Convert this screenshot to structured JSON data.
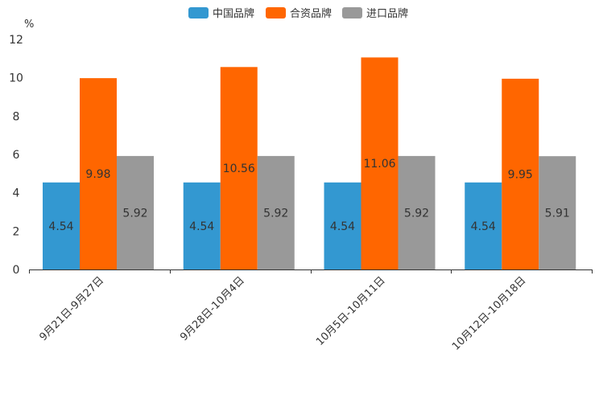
{
  "chart_data": {
    "type": "bar",
    "title": "",
    "xlabel": "",
    "ylabel": "",
    "unit": "%",
    "ylim": [
      0,
      12
    ],
    "yticks": [
      0,
      2,
      4,
      6,
      8,
      10,
      12
    ],
    "grid": false,
    "legend_position": "top-center",
    "categories": [
      "9月21日-9月27日",
      "9月28日-10月4日",
      "10月5日-10月11日",
      "10月12日-10月18日"
    ],
    "series": [
      {
        "name": "中国品牌",
        "color": "#3398d1",
        "values": [
          4.54,
          4.54,
          4.54,
          4.54
        ],
        "labels": [
          "4.54",
          "4.54",
          "4.54",
          "4.54"
        ]
      },
      {
        "name": "合资品牌",
        "color": "#ff6600",
        "values": [
          9.98,
          10.56,
          11.06,
          9.95
        ],
        "labels": [
          "9.98",
          "10.56",
          "11.06",
          "9.95"
        ]
      },
      {
        "name": "进口品牌",
        "color": "#999999",
        "values": [
          5.92,
          5.92,
          5.92,
          5.91
        ],
        "labels": [
          "5.92",
          "5.92",
          "5.92",
          "5.91"
        ]
      }
    ]
  }
}
